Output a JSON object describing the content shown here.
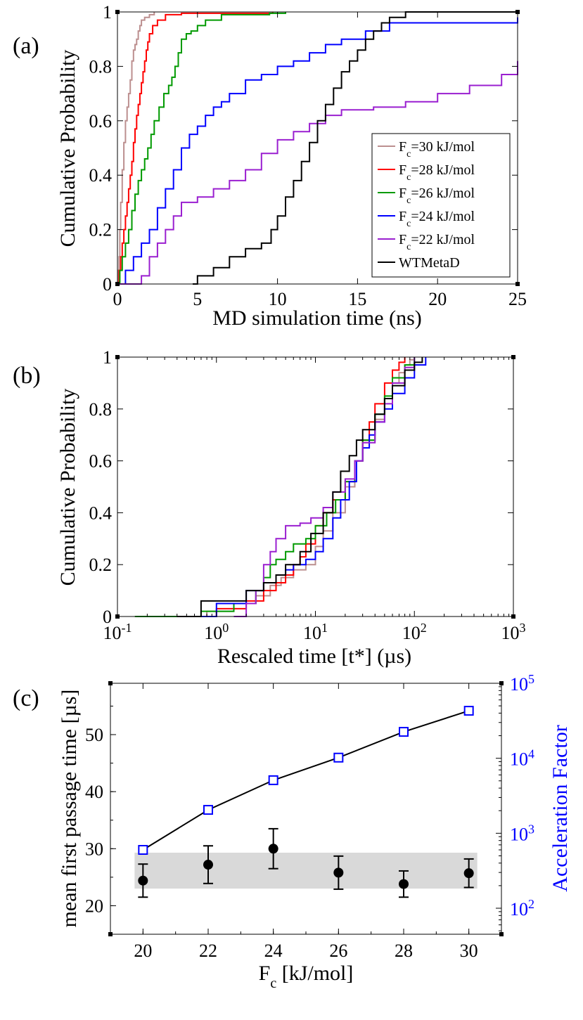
{
  "chart_data": [
    {
      "id": "a",
      "type": "line",
      "step": true,
      "panel_label": "(a)",
      "title": "",
      "xlabel": "MD simulation time (ns)",
      "ylabel": "Cumulative Probability",
      "xlim": [
        0,
        25
      ],
      "ylim": [
        0,
        1
      ],
      "x_ticks": [
        "0",
        "5",
        "10",
        "15",
        "20",
        "25"
      ],
      "y_ticks": [
        "0",
        "0.2",
        "0.4",
        "0.6",
        "0.8",
        "1"
      ],
      "legend_position": "center-right",
      "series": [
        {
          "name": "Fc=30 kJ/mol",
          "legend_base": "F",
          "legend_sub": "c",
          "legend_rest": "=30 kJ/mol",
          "color": "#bc8f8f",
          "x": [
            0,
            0.05,
            0.1,
            0.15,
            0.2,
            0.3,
            0.4,
            0.5,
            0.6,
            0.7,
            0.8,
            0.9,
            1.0,
            1.1,
            1.2,
            1.3,
            1.4,
            1.5,
            1.7,
            2.0,
            2.3
          ],
          "y": [
            0,
            0.05,
            0.1,
            0.2,
            0.3,
            0.42,
            0.52,
            0.6,
            0.65,
            0.7,
            0.75,
            0.82,
            0.86,
            0.88,
            0.9,
            0.93,
            0.95,
            0.97,
            0.98,
            0.99,
            1.0
          ]
        },
        {
          "name": "Fc=28 kJ/mol",
          "legend_base": "F",
          "legend_sub": "c",
          "legend_rest": "=28 kJ/mol",
          "color": "#ff0000",
          "x": [
            0,
            0.1,
            0.2,
            0.3,
            0.4,
            0.5,
            0.6,
            0.7,
            0.8,
            0.9,
            1.0,
            1.1,
            1.2,
            1.3,
            1.4,
            1.5,
            1.6,
            1.7,
            1.8,
            1.9,
            2.0,
            2.2,
            2.5,
            3.0,
            4.0,
            9.7
          ],
          "y": [
            0,
            0.05,
            0.1,
            0.15,
            0.2,
            0.25,
            0.3,
            0.35,
            0.4,
            0.45,
            0.52,
            0.57,
            0.62,
            0.66,
            0.7,
            0.74,
            0.78,
            0.82,
            0.86,
            0.89,
            0.92,
            0.95,
            0.97,
            0.99,
            0.995,
            1.0
          ]
        },
        {
          "name": "Fc=26 kJ/mol",
          "legend_base": "F",
          "legend_sub": "c",
          "legend_rest": "=26 kJ/mol",
          "color": "#009a00",
          "x": [
            0,
            0.15,
            0.3,
            0.5,
            0.7,
            0.9,
            1.1,
            1.3,
            1.5,
            1.7,
            1.9,
            2.1,
            2.3,
            2.6,
            2.9,
            3.2,
            3.4,
            3.6,
            3.8,
            4.0,
            4.3,
            4.6,
            5.0,
            5.5,
            6.5,
            9.5,
            10.5
          ],
          "y": [
            0,
            0.05,
            0.1,
            0.15,
            0.2,
            0.27,
            0.33,
            0.38,
            0.42,
            0.46,
            0.5,
            0.55,
            0.6,
            0.65,
            0.7,
            0.73,
            0.76,
            0.8,
            0.85,
            0.9,
            0.92,
            0.93,
            0.95,
            0.97,
            0.99,
            0.995,
            1.0
          ]
        },
        {
          "name": "Fc=24 kJ/mol",
          "legend_base": "F",
          "legend_sub": "c",
          "legend_rest": "=24 kJ/mol",
          "color": "#0000ff",
          "x": [
            0,
            0.5,
            1.0,
            1.5,
            2.0,
            2.5,
            3.0,
            3.5,
            4.0,
            4.5,
            5.0,
            5.5,
            6.0,
            6.5,
            7.0,
            8.0,
            9.0,
            10.0,
            11.0,
            12.0,
            13.0,
            14.0,
            15.5,
            17.0,
            25
          ],
          "y": [
            0,
            0.05,
            0.1,
            0.15,
            0.2,
            0.28,
            0.35,
            0.42,
            0.5,
            0.55,
            0.58,
            0.62,
            0.65,
            0.67,
            0.7,
            0.75,
            0.77,
            0.8,
            0.82,
            0.85,
            0.88,
            0.9,
            0.93,
            0.96,
            0.98
          ]
        },
        {
          "name": "Fc=22 kJ/mol",
          "legend_base": "F",
          "legend_sub": "c",
          "legend_rest": "=22 kJ/mol",
          "color": "#9a1fd0",
          "x": [
            0,
            1.5,
            2.0,
            2.5,
            3.0,
            3.5,
            4.0,
            5.0,
            6.0,
            7.0,
            8.0,
            9.0,
            10.0,
            11.0,
            12.0,
            13.0,
            14.0,
            16.0,
            18.0,
            20.0,
            22.0,
            24.0,
            25
          ],
          "y": [
            0,
            0.03,
            0.1,
            0.15,
            0.2,
            0.25,
            0.3,
            0.32,
            0.35,
            0.38,
            0.42,
            0.48,
            0.53,
            0.56,
            0.59,
            0.62,
            0.64,
            0.65,
            0.67,
            0.7,
            0.73,
            0.77,
            0.82
          ]
        },
        {
          "name": "WTMetaD",
          "legend_base": "WTMetaD",
          "legend_sub": "",
          "legend_rest": "",
          "color": "#000000",
          "x": [
            4.7,
            5.0,
            6.0,
            7.0,
            8.0,
            9.0,
            9.6,
            10.0,
            10.5,
            11.0,
            11.5,
            12.0,
            12.5,
            13.0,
            13.5,
            14.0,
            14.5,
            15.0,
            15.5,
            16.0,
            16.5,
            17.0,
            18.0,
            25
          ],
          "y": [
            0,
            0.03,
            0.06,
            0.1,
            0.13,
            0.15,
            0.2,
            0.25,
            0.32,
            0.38,
            0.45,
            0.52,
            0.6,
            0.66,
            0.72,
            0.78,
            0.82,
            0.86,
            0.9,
            0.93,
            0.96,
            0.98,
            1.0,
            1.0
          ]
        }
      ]
    },
    {
      "id": "b",
      "type": "line",
      "step": true,
      "panel_label": "(b)",
      "title": "",
      "xlabel": "Rescaled time [t*] (µs)",
      "ylabel": "Cumulative Probability",
      "xscale": "log",
      "xlim": [
        0.1,
        1000
      ],
      "ylim": [
        0,
        1
      ],
      "x_ticks": [
        {
          "base": "10",
          "exp": "-1"
        },
        {
          "base": "10",
          "exp": "0"
        },
        {
          "base": "10",
          "exp": "1"
        },
        {
          "base": "10",
          "exp": "2"
        },
        {
          "base": "10",
          "exp": "3"
        }
      ],
      "y_ticks": [
        "0",
        "0.2",
        "0.4",
        "0.6",
        "0.8",
        "1"
      ],
      "series": [
        {
          "name": "Fc=30 kJ/mol",
          "color": "#bc8f8f",
          "x": [
            0.25,
            0.8,
            1.5,
            2.5,
            3.5,
            4.5,
            6,
            8,
            10,
            12,
            15,
            20,
            25,
            30,
            40,
            50,
            60,
            70,
            80,
            90,
            100
          ],
          "y": [
            0,
            0.02,
            0.05,
            0.08,
            0.12,
            0.15,
            0.18,
            0.2,
            0.27,
            0.33,
            0.4,
            0.5,
            0.6,
            0.68,
            0.76,
            0.84,
            0.9,
            0.94,
            0.97,
            0.99,
            1.0
          ]
        },
        {
          "name": "Fc=28 kJ/mol",
          "color": "#ff0000",
          "x": [
            0.7,
            1.0,
            2.0,
            3.0,
            4.0,
            5.0,
            6.0,
            7.0,
            8.0,
            10,
            12,
            15,
            20,
            25,
            30,
            35,
            40,
            50,
            60,
            70,
            80
          ],
          "y": [
            0,
            0.03,
            0.06,
            0.1,
            0.13,
            0.16,
            0.2,
            0.23,
            0.28,
            0.35,
            0.4,
            0.45,
            0.52,
            0.6,
            0.68,
            0.75,
            0.82,
            0.9,
            0.95,
            0.98,
            1.0
          ]
        },
        {
          "name": "Fc=26 kJ/mol",
          "color": "#009a00",
          "x": [
            0.15,
            0.7,
            1.5,
            2.5,
            3.0,
            3.5,
            4.0,
            5.0,
            6.0,
            8.0,
            10,
            13,
            16,
            20,
            25,
            30,
            40,
            50,
            60,
            80,
            100
          ],
          "y": [
            0,
            0.02,
            0.05,
            0.1,
            0.15,
            0.2,
            0.22,
            0.25,
            0.28,
            0.3,
            0.35,
            0.4,
            0.45,
            0.52,
            0.6,
            0.68,
            0.78,
            0.85,
            0.92,
            0.97,
            1.0
          ]
        },
        {
          "name": "Fc=24 kJ/mol",
          "color": "#0000ff",
          "x": [
            0.7,
            1.0,
            2.0,
            3.0,
            4.0,
            5.0,
            6.0,
            8.0,
            10,
            12,
            15,
            18,
            22,
            26,
            30,
            35,
            40,
            50,
            60,
            80,
            100,
            130
          ],
          "y": [
            0,
            0.05,
            0.1,
            0.13,
            0.16,
            0.18,
            0.2,
            0.22,
            0.25,
            0.3,
            0.38,
            0.45,
            0.52,
            0.6,
            0.65,
            0.7,
            0.75,
            0.8,
            0.86,
            0.92,
            0.97,
            1.0
          ]
        },
        {
          "name": "Fc=22 kJ/mol",
          "color": "#9a1fd0",
          "x": [
            1.5,
            2.0,
            2.5,
            3.0,
            3.5,
            4.0,
            5.0,
            7.0,
            9.0,
            12,
            15,
            20,
            25,
            30,
            40,
            50,
            60,
            80,
            100
          ],
          "y": [
            0,
            0.05,
            0.1,
            0.2,
            0.25,
            0.3,
            0.35,
            0.36,
            0.38,
            0.42,
            0.48,
            0.53,
            0.6,
            0.67,
            0.75,
            0.82,
            0.9,
            0.96,
            1.0
          ]
        },
        {
          "name": "WTMetaD",
          "color": "#000000",
          "x": [
            0.4,
            0.7,
            1.0,
            2.0,
            3.0,
            4.0,
            5.0,
            7.0,
            9.0,
            12,
            15,
            18,
            22,
            26,
            30,
            40,
            50,
            60,
            80,
            100,
            120
          ],
          "y": [
            0,
            0.06,
            0.06,
            0.1,
            0.13,
            0.16,
            0.2,
            0.25,
            0.32,
            0.4,
            0.48,
            0.56,
            0.62,
            0.68,
            0.72,
            0.78,
            0.84,
            0.89,
            0.95,
            0.98,
            1.0
          ]
        }
      ]
    },
    {
      "id": "c",
      "type": "scatter",
      "panel_label": "(c)",
      "title": "",
      "xlabel_base": "F",
      "xlabel_sub": "c",
      "xlabel_rest": " [kJ/mol]",
      "ylabel": "mean first passage time [µs]",
      "y2label": "Acceleration Factor",
      "xlim": [
        19,
        31
      ],
      "ylim": [
        15,
        59
      ],
      "y2scale": "log",
      "y2lim": [
        45,
        100000
      ],
      "x_ticks": [
        "20",
        "22",
        "24",
        "26",
        "28",
        "30"
      ],
      "y_ticks": [
        "20",
        "30",
        "40",
        "50"
      ],
      "y2_ticks": [
        {
          "base": "10",
          "exp": "2"
        },
        {
          "base": "10",
          "exp": "3"
        },
        {
          "base": "10",
          "exp": "4"
        },
        {
          "base": "10",
          "exp": "5"
        }
      ],
      "band": {
        "y_low": 23,
        "y_high": 29.3,
        "color": "#d9d9d9"
      },
      "series": [
        {
          "name": "mean first passage time",
          "axis": "left",
          "marker": "filled-circle",
          "color": "#000000",
          "x": [
            20,
            22,
            24,
            26,
            28,
            30
          ],
          "y": [
            24.4,
            27.2,
            30.0,
            25.8,
            23.8,
            25.7
          ],
          "err": [
            2.9,
            3.3,
            3.5,
            2.9,
            2.3,
            2.5
          ]
        },
        {
          "name": "Acceleration Factor",
          "axis": "right",
          "marker": "open-square",
          "color": "#0000ff",
          "line_color": "#000000",
          "x": [
            20,
            22,
            24,
            26,
            28,
            30
          ],
          "y": [
            600,
            2050,
            5100,
            10200,
            22500,
            43000
          ]
        }
      ]
    }
  ]
}
